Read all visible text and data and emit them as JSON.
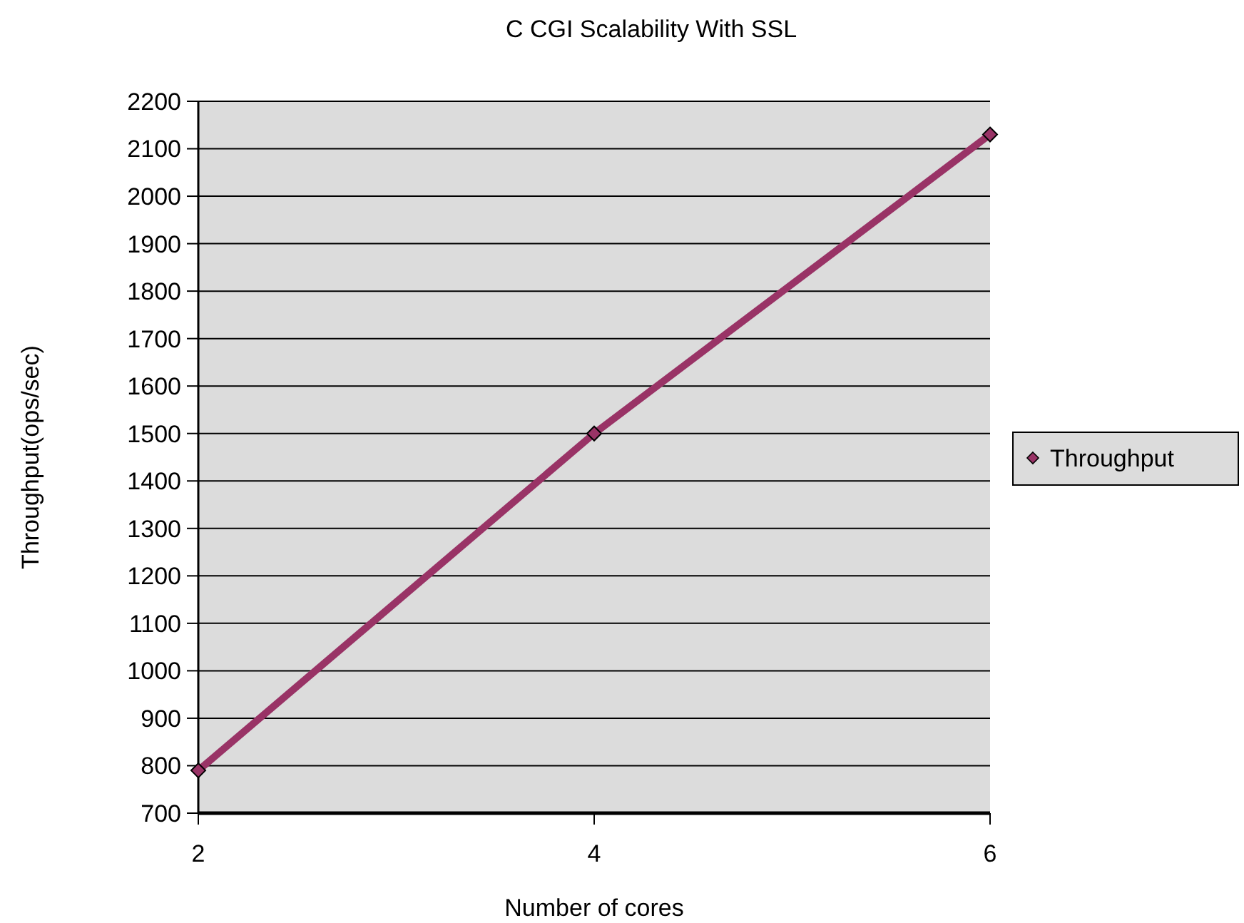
{
  "chart_data": {
    "type": "line",
    "title": "C CGI Scalability With SSL",
    "xlabel": "Number of cores",
    "ylabel": "Throughput(ops/sec)",
    "x": [
      2,
      4,
      6
    ],
    "series": [
      {
        "name": "Throughput",
        "color": "#993366",
        "values": [
          790,
          1500,
          2130
        ]
      }
    ],
    "xlim": [
      2,
      6
    ],
    "xticks": [
      2,
      4,
      6
    ],
    "ylim": [
      700,
      2200
    ],
    "yticks": [
      700,
      800,
      900,
      1000,
      1100,
      1200,
      1300,
      1400,
      1500,
      1600,
      1700,
      1800,
      1900,
      2000,
      2100,
      2200
    ],
    "grid": "y",
    "legend": "right",
    "marker": "diamond",
    "line_style": "solid"
  }
}
